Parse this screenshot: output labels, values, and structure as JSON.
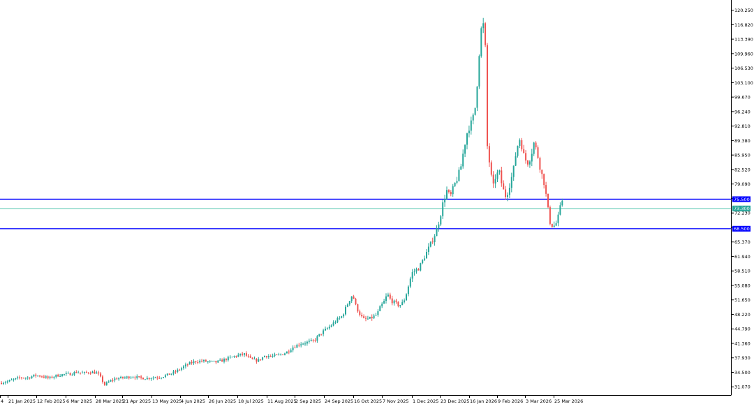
{
  "chart_data": {
    "type": "candlestick",
    "colors": {
      "up": "#26a69a",
      "down": "#ef5350",
      "price_line": "#79d2c0",
      "level_line": "#0000ff",
      "level_badge": "#0000ff",
      "price_badge": "#26a69a",
      "axis": "#000000",
      "text": "#000000"
    },
    "y_axis": {
      "min": 28.3,
      "max": 122.0,
      "ticks": [
        "120.250",
        "116.820",
        "113.390",
        "109.960",
        "106.530",
        "103.100",
        "99.670",
        "96.240",
        "92.810",
        "89.380",
        "85.950",
        "82.520",
        "79.090",
        "75.660",
        "72.230",
        "68.800",
        "65.370",
        "61.940",
        "58.510",
        "55.080",
        "51.650",
        "48.220",
        "44.790",
        "41.360",
        "37.930",
        "34.500",
        "31.070"
      ]
    },
    "x_axis": {
      "tick_labels": [
        "4",
        "21 Jan 2025",
        "12 Feb 2025",
        "6 Mar 2025",
        "28 Mar 2025",
        "21 Apr 2025",
        "13 May 2025",
        "4 Jun 2025",
        "26 Jun 2025",
        "18 Jul 2025",
        "11 Aug 2025",
        "2 Sep 2025",
        "24 Sep 2025",
        "16 Oct 2025",
        "7 Nov 2025",
        "1 Dec 2025",
        "23 Dec 2025",
        "16 Jan 2026",
        "9 Feb 2026",
        "3 Mar 2026",
        "25 Mar 2026"
      ]
    },
    "horizontal_levels": [
      {
        "value": 75.5,
        "label": "75.500"
      },
      {
        "value": 68.5,
        "label": "68.500"
      }
    ],
    "current_price": {
      "value": 73.3,
      "label": "73.300"
    },
    "price_path": [
      [
        0,
        32.0
      ],
      [
        10,
        32.3
      ],
      [
        20,
        32.8
      ],
      [
        30,
        33.3
      ],
      [
        40,
        33.2
      ],
      [
        50,
        33.8
      ],
      [
        60,
        33.6
      ],
      [
        70,
        33.1
      ],
      [
        80,
        33.7
      ],
      [
        90,
        34.0
      ],
      [
        100,
        34.1
      ],
      [
        110,
        34.6
      ],
      [
        120,
        34.3
      ],
      [
        130,
        34.6
      ],
      [
        140,
        34.3
      ],
      [
        145,
        33.0
      ],
      [
        150,
        31.5
      ],
      [
        155,
        32.2
      ],
      [
        165,
        33.0
      ],
      [
        175,
        33.2
      ],
      [
        190,
        33.5
      ],
      [
        200,
        33.2
      ],
      [
        210,
        33.1
      ],
      [
        220,
        33.3
      ],
      [
        230,
        33.4
      ],
      [
        240,
        33.9
      ],
      [
        250,
        34.5
      ],
      [
        260,
        35.5
      ],
      [
        270,
        36.5
      ],
      [
        280,
        37.1
      ],
      [
        290,
        37.2
      ],
      [
        300,
        37.0
      ],
      [
        310,
        36.9
      ],
      [
        320,
        37.4
      ],
      [
        330,
        38.0
      ],
      [
        340,
        38.5
      ],
      [
        350,
        38.8
      ],
      [
        360,
        37.5
      ],
      [
        370,
        37.3
      ],
      [
        380,
        38.5
      ],
      [
        390,
        38.3
      ],
      [
        400,
        38.6
      ],
      [
        410,
        39.2
      ],
      [
        420,
        40.5
      ],
      [
        430,
        41.3
      ],
      [
        440,
        41.6
      ],
      [
        450,
        42.0
      ],
      [
        460,
        43.8
      ],
      [
        470,
        45.0
      ],
      [
        480,
        46.5
      ],
      [
        490,
        47.8
      ],
      [
        500,
        51.5
      ],
      [
        505,
        53.0
      ],
      [
        510,
        50.0
      ],
      [
        515,
        48.5
      ],
      [
        520,
        47.0
      ],
      [
        530,
        47.2
      ],
      [
        540,
        48.2
      ],
      [
        545,
        50.0
      ],
      [
        550,
        51.2
      ],
      [
        555,
        53.0
      ],
      [
        560,
        51.5
      ],
      [
        565,
        51.0
      ],
      [
        570,
        50.5
      ],
      [
        575,
        50.5
      ],
      [
        580,
        52.0
      ],
      [
        585,
        55.0
      ],
      [
        590,
        58.0
      ],
      [
        600,
        59.2
      ],
      [
        610,
        62.5
      ],
      [
        620,
        66.0
      ],
      [
        625,
        68.0
      ],
      [
        630,
        71.0
      ],
      [
        635,
        75.0
      ],
      [
        640,
        77.5
      ],
      [
        645,
        76.0
      ],
      [
        650,
        78.5
      ],
      [
        655,
        80.5
      ],
      [
        660,
        83.0
      ],
      [
        665,
        88.0
      ],
      [
        670,
        92.0
      ],
      [
        675,
        93.5
      ],
      [
        680,
        96.0
      ],
      [
        685,
        106.0
      ],
      [
        688,
        115.0
      ],
      [
        692,
        117.0
      ],
      [
        695,
        112.0
      ],
      [
        698,
        88.0
      ],
      [
        702,
        83.0
      ],
      [
        706,
        78.0
      ],
      [
        710,
        81.0
      ],
      [
        715,
        82.0
      ],
      [
        720,
        78.0
      ],
      [
        725,
        76.0
      ],
      [
        730,
        79.0
      ],
      [
        735,
        82.0
      ],
      [
        740,
        87.5
      ],
      [
        745,
        90.0
      ],
      [
        750,
        86.0
      ],
      [
        755,
        84.0
      ],
      [
        760,
        85.5
      ],
      [
        765,
        89.0
      ],
      [
        770,
        86.0
      ],
      [
        775,
        82.0
      ],
      [
        780,
        79.0
      ],
      [
        785,
        73.0
      ],
      [
        788,
        70.0
      ],
      [
        792,
        69.0
      ],
      [
        796,
        69.5
      ],
      [
        800,
        71.5
      ],
      [
        805,
        75.5
      ],
      [
        808,
        73.3
      ]
    ]
  }
}
